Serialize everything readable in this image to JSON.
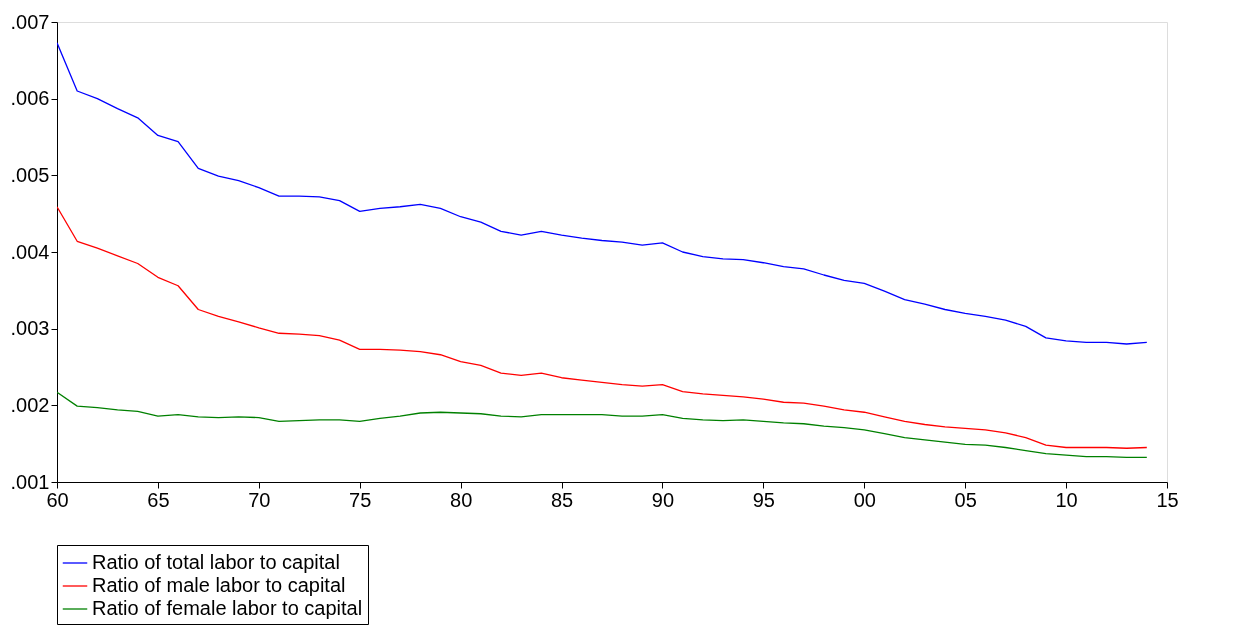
{
  "chart_data": {
    "type": "line",
    "x": [
      1960,
      1961,
      1962,
      1963,
      1964,
      1965,
      1966,
      1967,
      1968,
      1969,
      1970,
      1971,
      1972,
      1973,
      1974,
      1975,
      1976,
      1977,
      1978,
      1979,
      1980,
      1981,
      1982,
      1983,
      1984,
      1985,
      1986,
      1987,
      1988,
      1989,
      1990,
      1991,
      1992,
      1993,
      1994,
      1995,
      1996,
      1997,
      1998,
      1999,
      2000,
      2001,
      2002,
      2003,
      2004,
      2005,
      2006,
      2007,
      2008,
      2009,
      2010,
      2011,
      2012,
      2013,
      2014
    ],
    "series": [
      {
        "name": "Ratio of total labor to capital",
        "color": "#0000ff",
        "values": [
          0.00673,
          0.0061,
          0.006,
          0.00587,
          0.00575,
          0.00552,
          0.00544,
          0.00509,
          0.00499,
          0.00493,
          0.00484,
          0.00473,
          0.00473,
          0.00472,
          0.00467,
          0.00453,
          0.00457,
          0.00459,
          0.00462,
          0.00457,
          0.00446,
          0.00439,
          0.00427,
          0.00422,
          0.00427,
          0.00422,
          0.00418,
          0.00415,
          0.00413,
          0.00409,
          0.00412,
          0.004,
          0.00394,
          0.00391,
          0.0039,
          0.00386,
          0.00381,
          0.00378,
          0.0037,
          0.00363,
          0.00359,
          0.00349,
          0.00338,
          0.00332,
          0.00325,
          0.0032,
          0.00316,
          0.00311,
          0.00303,
          0.00288,
          0.00284,
          0.00282,
          0.00282,
          0.0028,
          0.00282
        ]
      },
      {
        "name": "Ratio of male labor to capital",
        "color": "#ff0000",
        "values": [
          0.00459,
          0.00414,
          0.00405,
          0.00395,
          0.00385,
          0.00367,
          0.00356,
          0.00325,
          0.00316,
          0.00309,
          0.00301,
          0.00294,
          0.00293,
          0.00291,
          0.00285,
          0.00273,
          0.00273,
          0.00272,
          0.0027,
          0.00266,
          0.00257,
          0.00252,
          0.00242,
          0.00239,
          0.00242,
          0.00236,
          0.00233,
          0.0023,
          0.00227,
          0.00225,
          0.00227,
          0.00218,
          0.00215,
          0.00213,
          0.00211,
          0.00208,
          0.00204,
          0.00203,
          0.00199,
          0.00194,
          0.00191,
          0.00185,
          0.00179,
          0.00175,
          0.00172,
          0.0017,
          0.00168,
          0.00164,
          0.00158,
          0.00148,
          0.00145,
          0.00145,
          0.00145,
          0.00144,
          0.00145
        ]
      },
      {
        "name": "Ratio of female labor to capital",
        "color": "#008000",
        "values": [
          0.00217,
          0.00199,
          0.00197,
          0.00194,
          0.00192,
          0.00186,
          0.00188,
          0.00185,
          0.00184,
          0.00185,
          0.00184,
          0.00179,
          0.0018,
          0.00181,
          0.00181,
          0.00179,
          0.00183,
          0.00186,
          0.0019,
          0.00191,
          0.0019,
          0.00189,
          0.00186,
          0.00185,
          0.00188,
          0.00188,
          0.00188,
          0.00188,
          0.00186,
          0.00186,
          0.00188,
          0.00183,
          0.00181,
          0.0018,
          0.00181,
          0.00179,
          0.00177,
          0.00176,
          0.00173,
          0.00171,
          0.00168,
          0.00163,
          0.00158,
          0.00155,
          0.00152,
          0.00149,
          0.00148,
          0.00145,
          0.00141,
          0.00137,
          0.00135,
          0.00133,
          0.00133,
          0.00132,
          0.00132
        ]
      }
    ],
    "xlim": [
      1960,
      2015
    ],
    "xticks": [
      {
        "value": 1960,
        "label": "60"
      },
      {
        "value": 1965,
        "label": "65"
      },
      {
        "value": 1970,
        "label": "70"
      },
      {
        "value": 1975,
        "label": "75"
      },
      {
        "value": 1980,
        "label": "80"
      },
      {
        "value": 1985,
        "label": "85"
      },
      {
        "value": 1990,
        "label": "90"
      },
      {
        "value": 1995,
        "label": "95"
      },
      {
        "value": 2000,
        "label": "00"
      },
      {
        "value": 2005,
        "label": "05"
      },
      {
        "value": 2010,
        "label": "10"
      },
      {
        "value": 2015,
        "label": "15"
      }
    ],
    "ylim": [
      0.001,
      0.007
    ],
    "yticks": [
      {
        "value": 0.001,
        "label": ".001"
      },
      {
        "value": 0.002,
        "label": ".002"
      },
      {
        "value": 0.003,
        "label": ".003"
      },
      {
        "value": 0.004,
        "label": ".004"
      },
      {
        "value": 0.005,
        "label": ".005"
      },
      {
        "value": 0.006,
        "label": ".006"
      },
      {
        "value": 0.007,
        "label": ".007"
      }
    ],
    "grid": false,
    "legend": "bottom",
    "line_style": "solid",
    "marker": "none"
  }
}
